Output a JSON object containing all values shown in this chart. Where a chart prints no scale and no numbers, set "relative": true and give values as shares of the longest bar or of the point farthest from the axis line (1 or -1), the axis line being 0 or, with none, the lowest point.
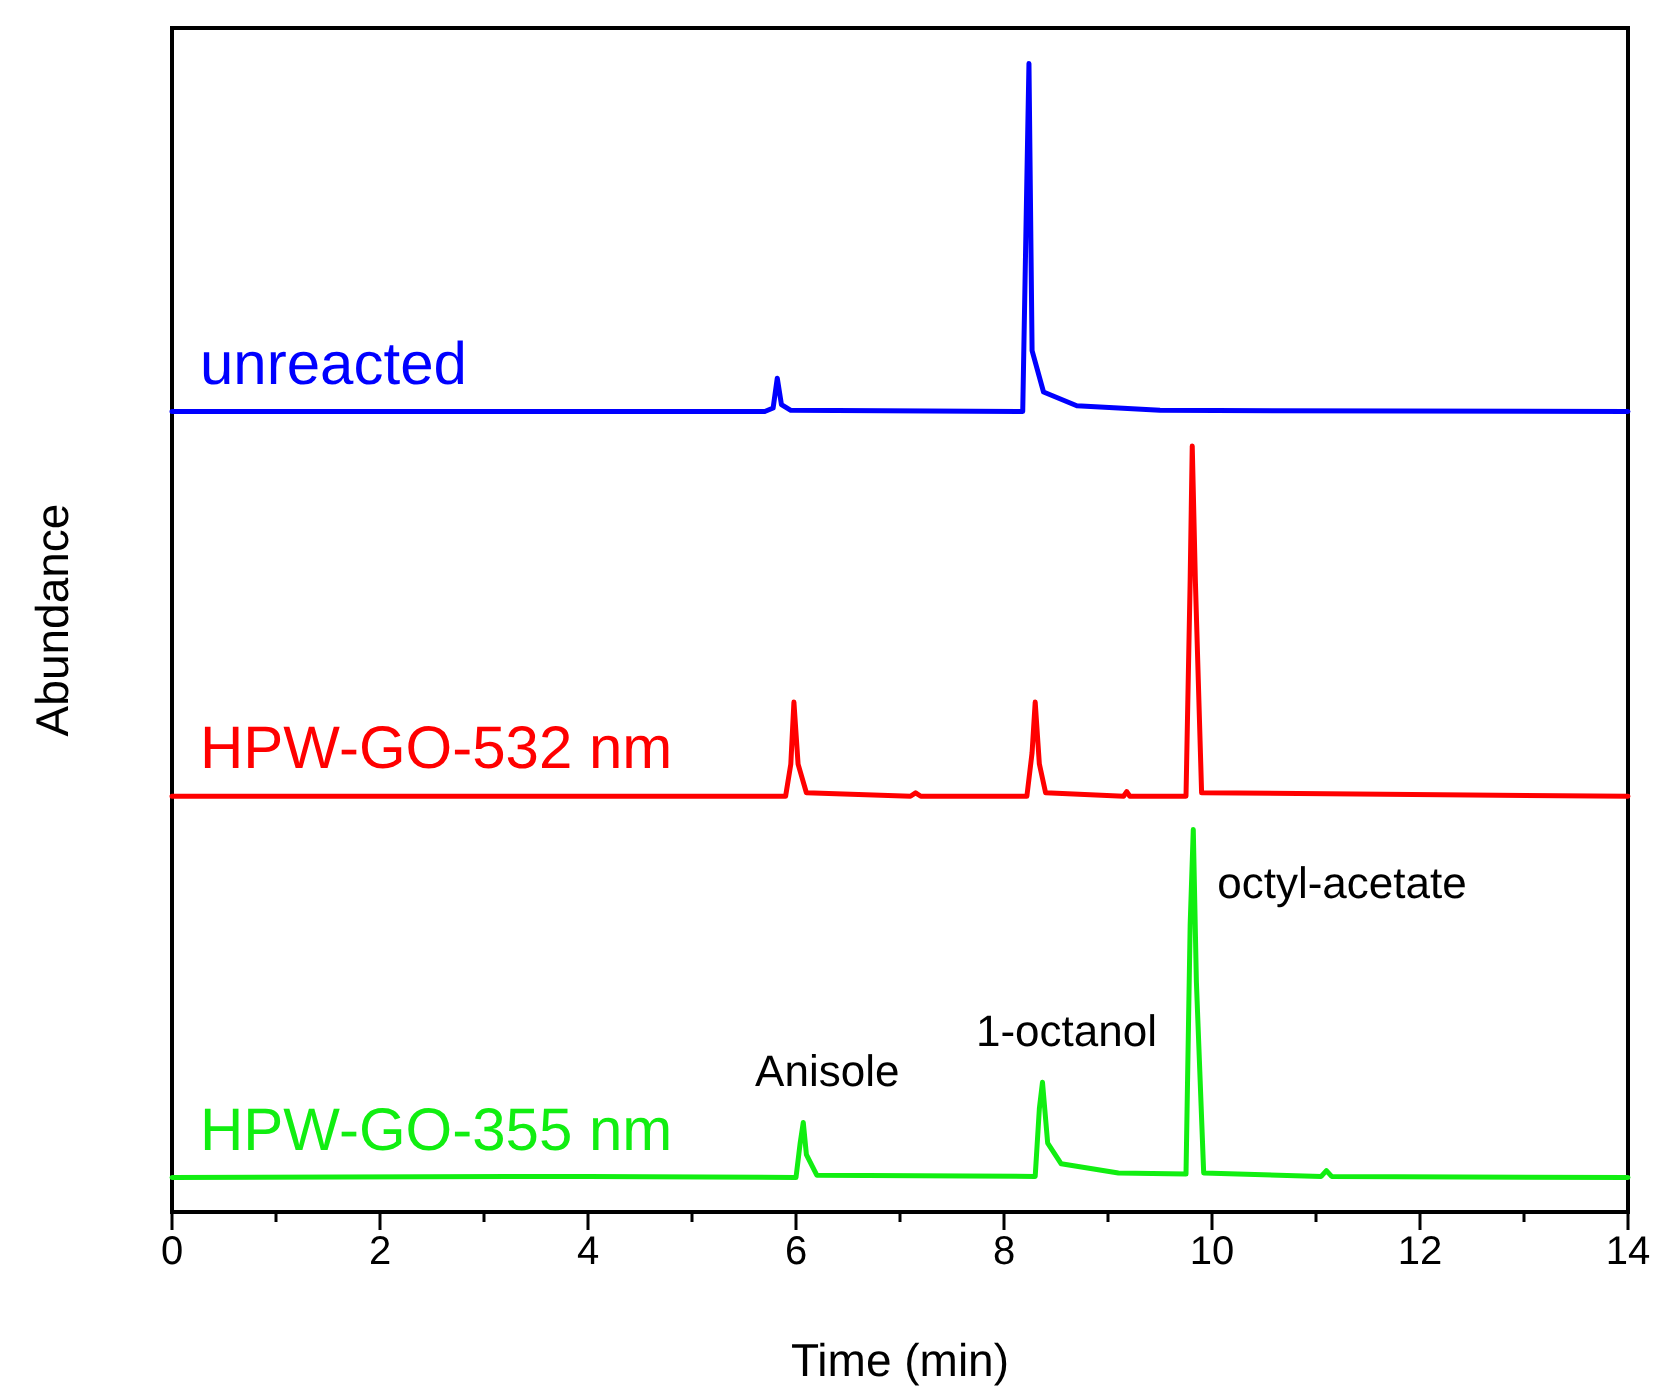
{
  "chart_data": {
    "type": "line",
    "relative": true,
    "xlabel": "Time (min)",
    "ylabel": "Abundance",
    "xlim": [
      0,
      14
    ],
    "xticks": [
      0,
      {
        "value": 1,
        "label": null
      },
      2,
      {
        "value": 3,
        "label": null
      },
      4,
      {
        "value": 5,
        "label": null
      },
      6,
      {
        "value": 7,
        "label": null
      },
      8,
      {
        "value": 9,
        "label": null
      },
      10,
      {
        "value": 11,
        "label": null
      },
      12,
      {
        "value": 13,
        "label": null
      },
      14
    ],
    "series": [
      {
        "name": "unreacted",
        "color": "#0000ff",
        "x": [
          0,
          5.7,
          5.78,
          5.82,
          5.86,
          5.95,
          8.18,
          8.22,
          8.24,
          8.27,
          8.38,
          8.7,
          9.5,
          14
        ],
        "values": [
          0.697,
          0.697,
          0.7,
          0.726,
          0.703,
          0.698,
          0.697,
          0.9,
          1,
          0.75,
          0.714,
          0.702,
          0.698,
          0.697
        ]
      },
      {
        "name": "HPW-GO-532 nm",
        "color": "#ff0000",
        "x": [
          0,
          5.9,
          5.95,
          5.98,
          6.02,
          6.1,
          7.1,
          7.15,
          7.2,
          8.22,
          8.27,
          8.3,
          8.34,
          8.4,
          9.15,
          9.18,
          9.21,
          9.75,
          9.79,
          9.81,
          9.84,
          9.9,
          14
        ],
        "values": [
          0.362,
          0.362,
          0.39,
          0.444,
          0.39,
          0.365,
          0.362,
          0.365,
          0.362,
          0.362,
          0.4,
          0.444,
          0.39,
          0.365,
          0.362,
          0.366,
          0.362,
          0.362,
          0.55,
          0.667,
          0.55,
          0.365,
          0.362
        ]
      },
      {
        "name": "HPW-GO-355 nm",
        "color": "#11ee11",
        "x": [
          0,
          4,
          6,
          6.04,
          6.07,
          6.1,
          6.2,
          8.3,
          8.34,
          8.37,
          8.42,
          8.55,
          9.1,
          9.75,
          9.79,
          9.82,
          9.85,
          9.92,
          11.05,
          11.1,
          11.15,
          14
        ],
        "values": [
          0.03,
          0.031,
          0.03,
          0.06,
          0.078,
          0.05,
          0.032,
          0.031,
          0.09,
          0.113,
          0.06,
          0.042,
          0.034,
          0.033,
          0.25,
          0.333,
          0.2,
          0.034,
          0.031,
          0.036,
          0.031,
          0.03
        ]
      }
    ],
    "annotations": [
      {
        "text": "Anisole",
        "x": 6.07,
        "y": 0.078
      },
      {
        "text": "1-octanol",
        "x": 8.37,
        "y": 0.113
      },
      {
        "text": "octyl-acetate",
        "x": 9.82,
        "y": 0.333
      }
    ]
  }
}
